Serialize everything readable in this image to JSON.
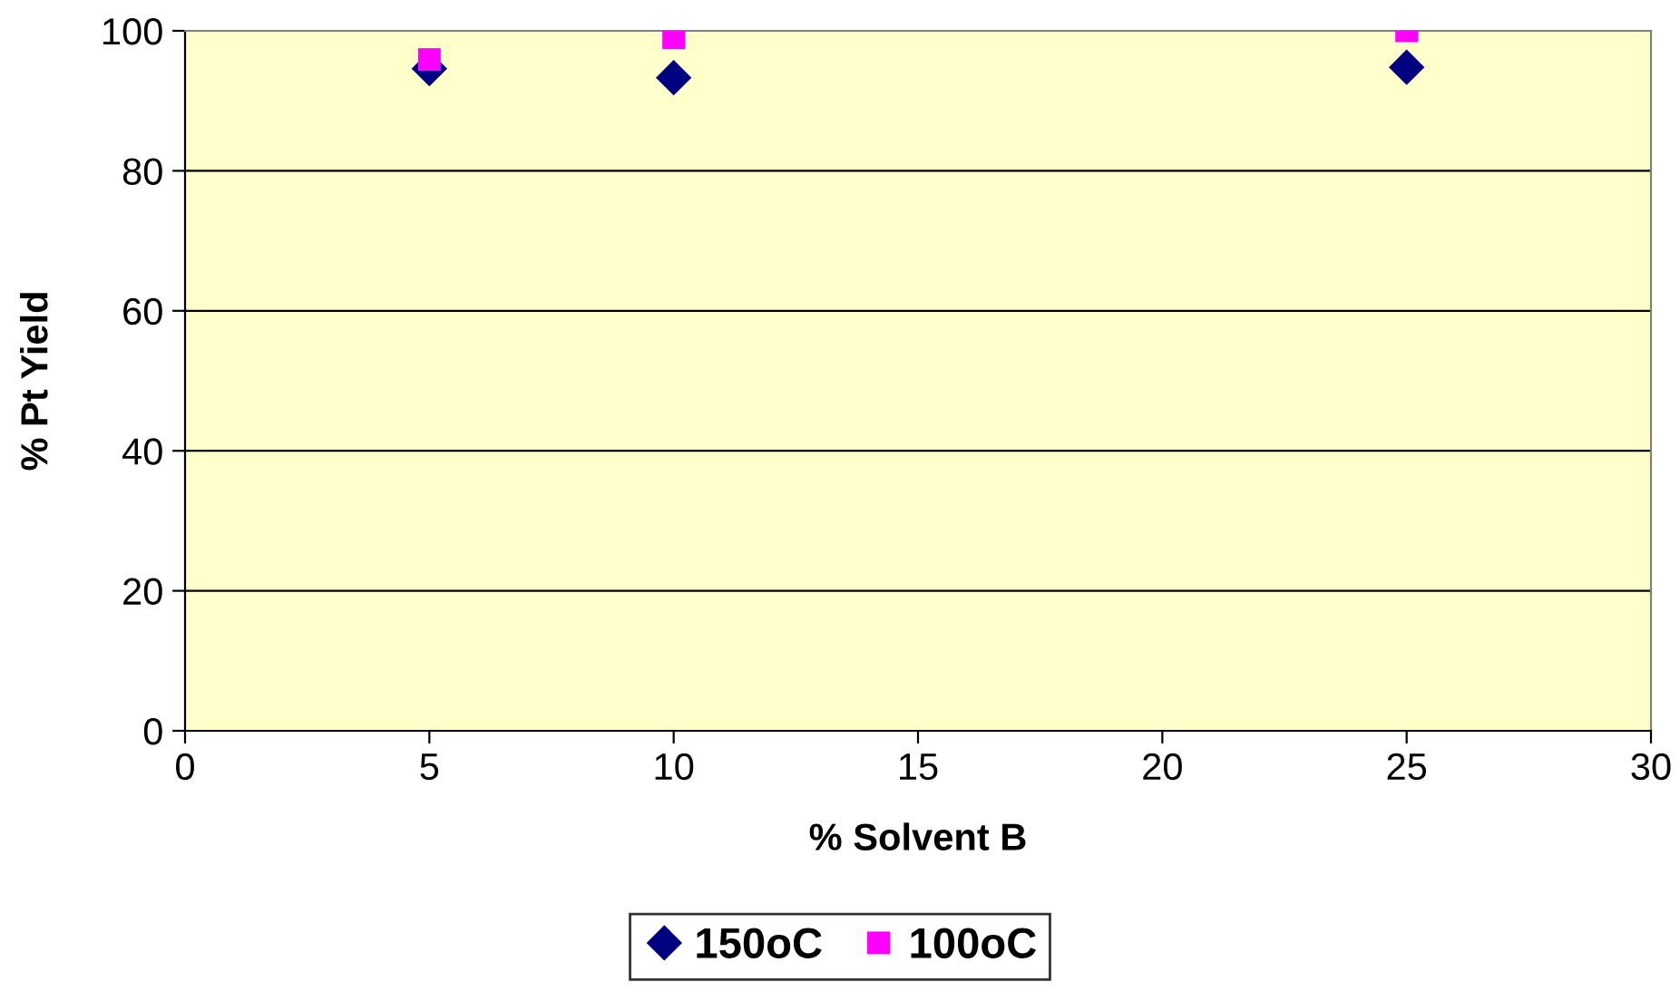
{
  "chart_data": {
    "type": "scatter",
    "xlabel": "% Solvent B",
    "ylabel": "% Pt Yield",
    "xlim": [
      0,
      30
    ],
    "xticks": [
      0,
      5,
      10,
      15,
      20,
      25,
      30
    ],
    "ylim": [
      0,
      100
    ],
    "yticks": [
      0,
      20,
      40,
      60,
      80,
      100
    ],
    "grid": "y",
    "legend": "bottom",
    "series": [
      {
        "name": "150oC",
        "color": "#000080",
        "marker": "diamond",
        "x": [
          5,
          10,
          25
        ],
        "values": [
          94.6,
          93.3,
          94.8
        ]
      },
      {
        "name": "100oC",
        "color": "#ff00ff",
        "marker": "square",
        "x": [
          5,
          10,
          25
        ],
        "values": [
          95.9,
          99.0,
          100
        ]
      }
    ]
  }
}
